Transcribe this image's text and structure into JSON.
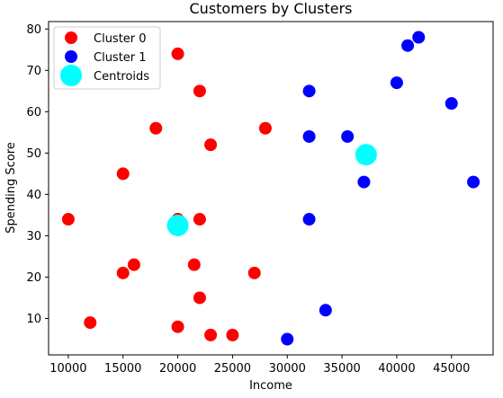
{
  "chart_data": {
    "type": "scatter",
    "title": "Customers by Clusters",
    "xlabel": "Income",
    "ylabel": "Spending Score",
    "xlim": [
      8200,
      48800
    ],
    "ylim": [
      1.2,
      81.8
    ],
    "xticks": [
      10000,
      15000,
      20000,
      25000,
      30000,
      35000,
      40000,
      45000
    ],
    "yticks": [
      10,
      20,
      30,
      40,
      50,
      60,
      70,
      80
    ],
    "grid": false,
    "legend_position": "top-left",
    "series": [
      {
        "name": "Cluster 0",
        "color": "#ff0000",
        "points": [
          [
            10000,
            34
          ],
          [
            12000,
            9
          ],
          [
            15000,
            45
          ],
          [
            15000,
            21
          ],
          [
            16000,
            23
          ],
          [
            18000,
            56
          ],
          [
            20000,
            74
          ],
          [
            20000,
            34
          ],
          [
            20000,
            8
          ],
          [
            21500,
            23
          ],
          [
            22000,
            65
          ],
          [
            22000,
            34
          ],
          [
            22000,
            15
          ],
          [
            23000,
            52
          ],
          [
            23000,
            6
          ],
          [
            25000,
            6
          ],
          [
            27000,
            21
          ],
          [
            28000,
            56
          ]
        ]
      },
      {
        "name": "Cluster 1",
        "color": "#0000ff",
        "points": [
          [
            30000,
            5
          ],
          [
            32000,
            65
          ],
          [
            32000,
            54
          ],
          [
            32000,
            34
          ],
          [
            33500,
            12
          ],
          [
            35500,
            54
          ],
          [
            37000,
            43
          ],
          [
            40000,
            67
          ],
          [
            41000,
            76
          ],
          [
            42000,
            78
          ],
          [
            45000,
            62
          ],
          [
            47000,
            43
          ]
        ]
      },
      {
        "name": "Centroids",
        "color": "#00ffff",
        "points": [
          [
            20000,
            32.5
          ],
          [
            37200,
            49.6
          ]
        ]
      }
    ]
  }
}
